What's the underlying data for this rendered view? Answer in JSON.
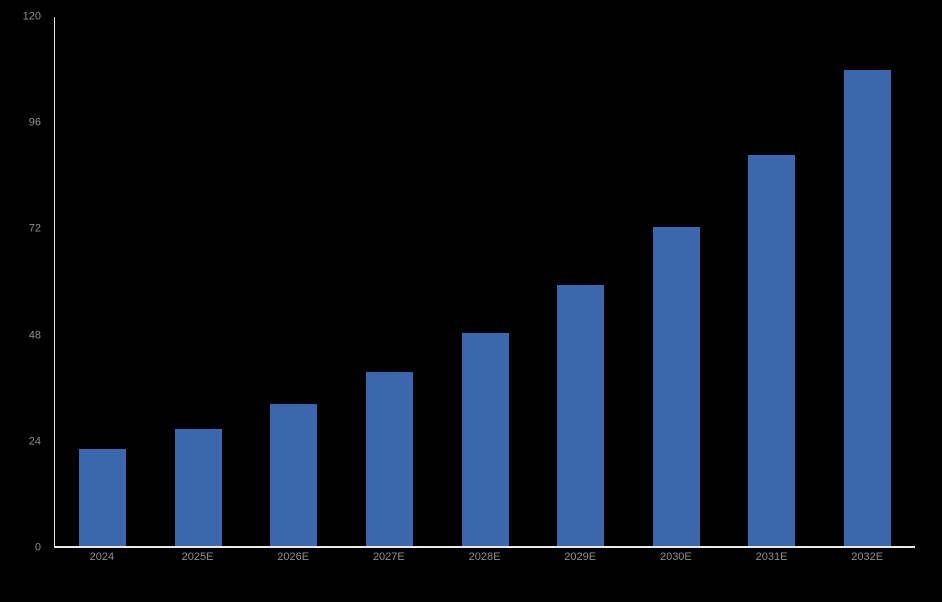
{
  "chart_data": {
    "type": "bar",
    "title": "",
    "xlabel": "",
    "ylabel": "",
    "categories": [
      "2024",
      "2025E",
      "2026E",
      "2027E",
      "2028E",
      "2029E",
      "2030E",
      "2031E",
      "2032E"
    ],
    "values": [
      21.9,
      26.6,
      32.3,
      39.5,
      48.3,
      59.2,
      72.3,
      88.6,
      107.9
    ],
    "ylim": [
      0,
      120
    ],
    "yticks": [
      0,
      24,
      48,
      72,
      96,
      120
    ],
    "grid": false,
    "legend": false,
    "colors": {
      "bar": "#3C66AE",
      "axis_line": "#E8E8E8",
      "tick_label": "#8F8F8F",
      "background": "#000000"
    }
  }
}
